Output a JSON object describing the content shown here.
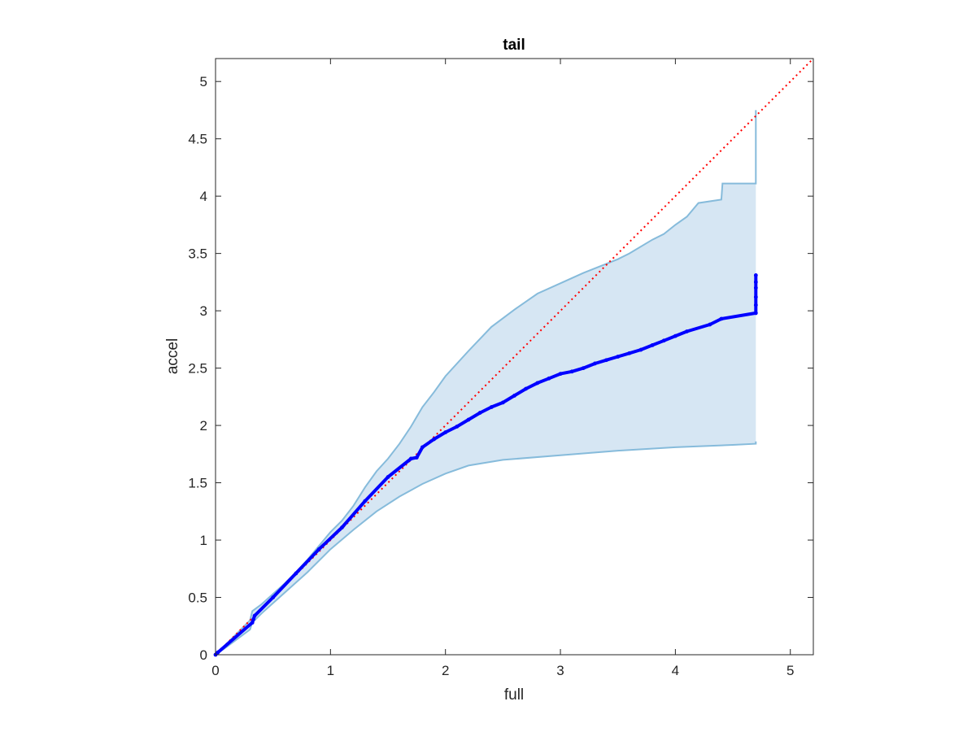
{
  "chart_data": {
    "type": "scatter",
    "title": "tail",
    "xlabel": "full",
    "ylabel": "accel",
    "xlim": [
      0,
      5.2
    ],
    "ylim": [
      0,
      5.2
    ],
    "xticks": [
      0,
      1,
      2,
      3,
      4,
      5
    ],
    "yticks": [
      0,
      0.5,
      1,
      1.5,
      2,
      2.5,
      3,
      3.5,
      4,
      4.5,
      5
    ],
    "xtick_labels": [
      "0",
      "1",
      "2",
      "3",
      "4",
      "5"
    ],
    "ytick_labels": [
      "0",
      "0.5",
      "1",
      "1.5",
      "2",
      "2.5",
      "3",
      "3.5",
      "4",
      "4.5",
      "5"
    ],
    "grid": false,
    "box": true,
    "colors": {
      "points": "#0000ff",
      "band_fill": "#d6e6f3",
      "band_edge": "#86bbdb",
      "reference_line": "#ff0000",
      "axes": "#262626"
    },
    "reference_line": {
      "style": "dotted",
      "x": [
        0,
        5.2
      ],
      "y": [
        0,
        5.2
      ]
    },
    "envelope": {
      "upper": [
        [
          0,
          0
        ],
        [
          0.1,
          0.1
        ],
        [
          0.2,
          0.2
        ],
        [
          0.3,
          0.3
        ],
        [
          0.32,
          0.38
        ],
        [
          0.4,
          0.44
        ],
        [
          0.5,
          0.53
        ],
        [
          0.6,
          0.62
        ],
        [
          0.7,
          0.72
        ],
        [
          0.8,
          0.83
        ],
        [
          0.9,
          0.95
        ],
        [
          1.0,
          1.07
        ],
        [
          1.1,
          1.17
        ],
        [
          1.2,
          1.3
        ],
        [
          1.3,
          1.46
        ],
        [
          1.4,
          1.6
        ],
        [
          1.5,
          1.71
        ],
        [
          1.6,
          1.84
        ],
        [
          1.7,
          1.99
        ],
        [
          1.8,
          2.16
        ],
        [
          1.9,
          2.29
        ],
        [
          2.0,
          2.43
        ],
        [
          2.2,
          2.65
        ],
        [
          2.4,
          2.86
        ],
        [
          2.6,
          3.01
        ],
        [
          2.8,
          3.15
        ],
        [
          3.0,
          3.24
        ],
        [
          3.2,
          3.33
        ],
        [
          3.4,
          3.41
        ],
        [
          3.5,
          3.45
        ],
        [
          3.6,
          3.5
        ],
        [
          3.8,
          3.62
        ],
        [
          3.9,
          3.67
        ],
        [
          4.0,
          3.75
        ],
        [
          4.1,
          3.82
        ],
        [
          4.2,
          3.94
        ],
        [
          4.4,
          3.97
        ],
        [
          4.41,
          4.11
        ],
        [
          4.7,
          4.11
        ],
        [
          4.7,
          4.75
        ]
      ],
      "lower": [
        [
          4.7,
          1.86
        ],
        [
          4.7,
          1.84
        ],
        [
          4.5,
          1.83
        ],
        [
          4.0,
          1.81
        ],
        [
          3.5,
          1.78
        ],
        [
          3.0,
          1.74
        ],
        [
          2.5,
          1.7
        ],
        [
          2.2,
          1.65
        ],
        [
          2.0,
          1.58
        ],
        [
          1.8,
          1.49
        ],
        [
          1.6,
          1.38
        ],
        [
          1.4,
          1.25
        ],
        [
          1.2,
          1.09
        ],
        [
          1.0,
          0.92
        ],
        [
          0.8,
          0.72
        ],
        [
          0.6,
          0.54
        ],
        [
          0.4,
          0.36
        ],
        [
          0.32,
          0.28
        ],
        [
          0.3,
          0.22
        ],
        [
          0.1,
          0.07
        ],
        [
          0,
          0
        ]
      ]
    },
    "series": [
      {
        "points": [
          [
            0,
            0
          ],
          [
            0.02,
            0.02
          ],
          [
            0.32,
            0.28
          ],
          [
            0.33,
            0.31
          ],
          [
            0.34,
            0.34
          ],
          [
            0.5,
            0.5
          ],
          [
            0.7,
            0.71
          ],
          [
            0.9,
            0.92
          ],
          [
            1.1,
            1.11
          ],
          [
            1.3,
            1.34
          ],
          [
            1.5,
            1.55
          ],
          [
            1.7,
            1.71
          ],
          [
            1.75,
            1.72
          ],
          [
            1.8,
            1.81
          ],
          [
            1.9,
            1.88
          ],
          [
            2.0,
            1.94
          ],
          [
            2.1,
            1.99
          ],
          [
            2.2,
            2.05
          ],
          [
            2.3,
            2.11
          ],
          [
            2.4,
            2.16
          ],
          [
            2.5,
            2.2
          ],
          [
            2.6,
            2.26
          ],
          [
            2.7,
            2.32
          ],
          [
            2.8,
            2.37
          ],
          [
            2.9,
            2.41
          ],
          [
            3.0,
            2.45
          ],
          [
            3.1,
            2.47
          ],
          [
            3.2,
            2.5
          ],
          [
            3.3,
            2.54
          ],
          [
            3.4,
            2.57
          ],
          [
            3.5,
            2.6
          ],
          [
            3.6,
            2.63
          ],
          [
            3.7,
            2.66
          ],
          [
            3.8,
            2.7
          ],
          [
            3.9,
            2.74
          ],
          [
            4.0,
            2.78
          ],
          [
            4.1,
            2.82
          ],
          [
            4.3,
            2.88
          ],
          [
            4.4,
            2.93
          ],
          [
            4.7,
            2.98
          ],
          [
            4.7,
            3.05
          ],
          [
            4.7,
            3.12
          ],
          [
            4.7,
            3.2
          ],
          [
            4.7,
            3.25
          ],
          [
            4.7,
            3.31
          ]
        ]
      }
    ]
  }
}
